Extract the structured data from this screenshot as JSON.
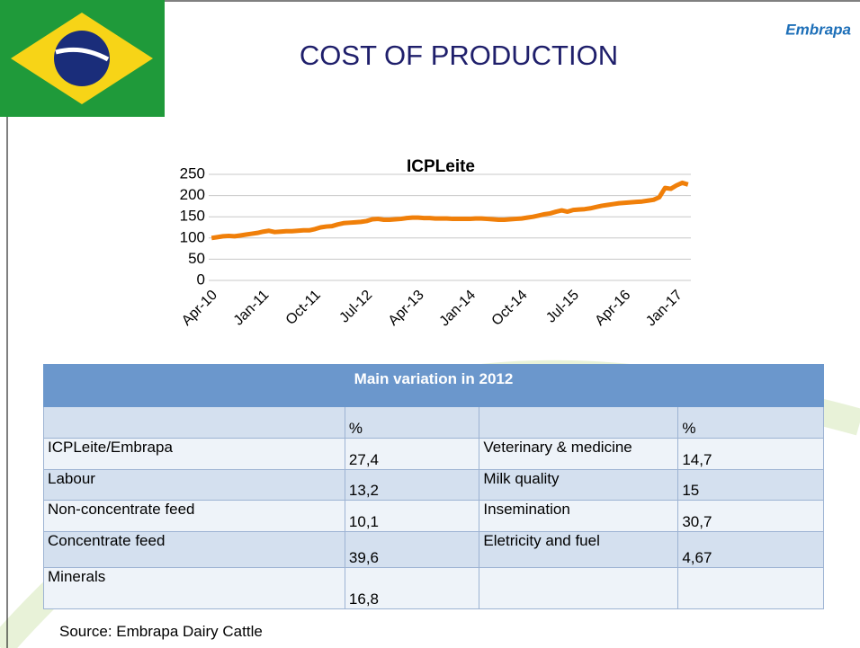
{
  "title": "COST OF PRODUCTION",
  "logo": "Embrapa",
  "chart_data": {
    "type": "line",
    "title": "ICPLeite",
    "categories": [
      "Apr-10",
      null,
      null,
      null,
      null,
      null,
      null,
      null,
      null,
      "Jan-11",
      null,
      null,
      null,
      null,
      null,
      null,
      null,
      null,
      "Oct-11",
      null,
      null,
      null,
      null,
      null,
      null,
      null,
      null,
      "Jul-12",
      null,
      null,
      null,
      null,
      null,
      null,
      null,
      null,
      "Apr-13",
      null,
      null,
      null,
      null,
      null,
      null,
      null,
      null,
      "Jan-14",
      null,
      null,
      null,
      null,
      null,
      null,
      null,
      null,
      "Oct-14",
      null,
      null,
      null,
      null,
      null,
      null,
      null,
      null,
      "Jul-15",
      null,
      null,
      null,
      null,
      null,
      null,
      null,
      null,
      "Apr-16",
      null,
      null,
      null,
      null,
      null,
      null,
      null,
      null,
      "Jan-17",
      null,
      null
    ],
    "series": [
      {
        "name": "ICPLeite",
        "color": "#f07f09",
        "values": [
          100,
          102,
          104,
          105,
          104,
          106,
          108,
          110,
          112,
          115,
          117,
          114,
          115,
          116,
          116,
          117,
          118,
          118,
          121,
          125,
          127,
          128,
          132,
          135,
          136,
          137,
          138,
          140,
          144,
          145,
          143,
          143,
          144,
          145,
          147,
          148,
          148,
          147,
          147,
          146,
          146,
          146,
          145,
          145,
          145,
          145,
          146,
          146,
          145,
          144,
          143,
          143,
          144,
          145,
          146,
          148,
          150,
          153,
          156,
          158,
          162,
          165,
          162,
          166,
          167,
          168,
          170,
          173,
          176,
          178,
          180,
          182,
          183,
          184,
          185,
          186,
          188,
          190,
          196,
          218,
          216,
          224,
          230,
          226
        ]
      }
    ],
    "ylim": [
      0,
      250
    ],
    "yticks": [
      0,
      50,
      100,
      150,
      200,
      250
    ],
    "grid": true
  },
  "table": {
    "title": "Main variation in 2012",
    "columns": [
      null,
      "%",
      null,
      "%"
    ],
    "rows": [
      [
        "ICPLeite/Embrapa",
        "27,4",
        "Veterinary & medicine",
        "14,7"
      ],
      [
        "Labour",
        "13,2",
        "Milk quality",
        "15"
      ],
      [
        "Non-concentrate feed",
        "10,1",
        "Insemination",
        "30,7"
      ],
      [
        "Concentrate feed",
        "39,6",
        "Eletricity and fuel",
        "4,67"
      ],
      [
        "Minerals",
        "16,8",
        null,
        null
      ]
    ]
  },
  "source": "Source: Embrapa Dairy Cattle"
}
